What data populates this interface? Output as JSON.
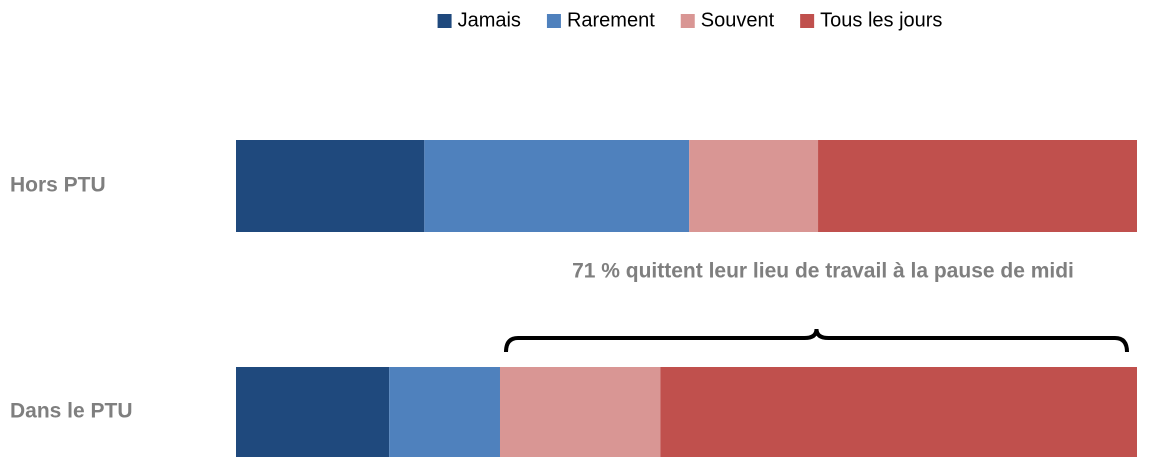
{
  "chart_data": {
    "type": "stacked_barh",
    "categories": [
      "Hors PTU",
      "Dans le PTU"
    ],
    "series": [
      {
        "name": "Jamais",
        "color": "#1f497d",
        "values": [
          20.9,
          17.0
        ]
      },
      {
        "name": "Rarement",
        "color": "#4f81bd",
        "values": [
          29.4,
          12.3
        ]
      },
      {
        "name": "Souvent",
        "color": "#d99694",
        "values": [
          14.3,
          17.8
        ]
      },
      {
        "name": "Tous les jours",
        "color": "#c0504d",
        "values": [
          35.4,
          52.9
        ]
      }
    ],
    "xlim": [
      0,
      100
    ],
    "legend": "top",
    "annotation": "71 % quittent leur lieu de travail à la pause de midi"
  }
}
